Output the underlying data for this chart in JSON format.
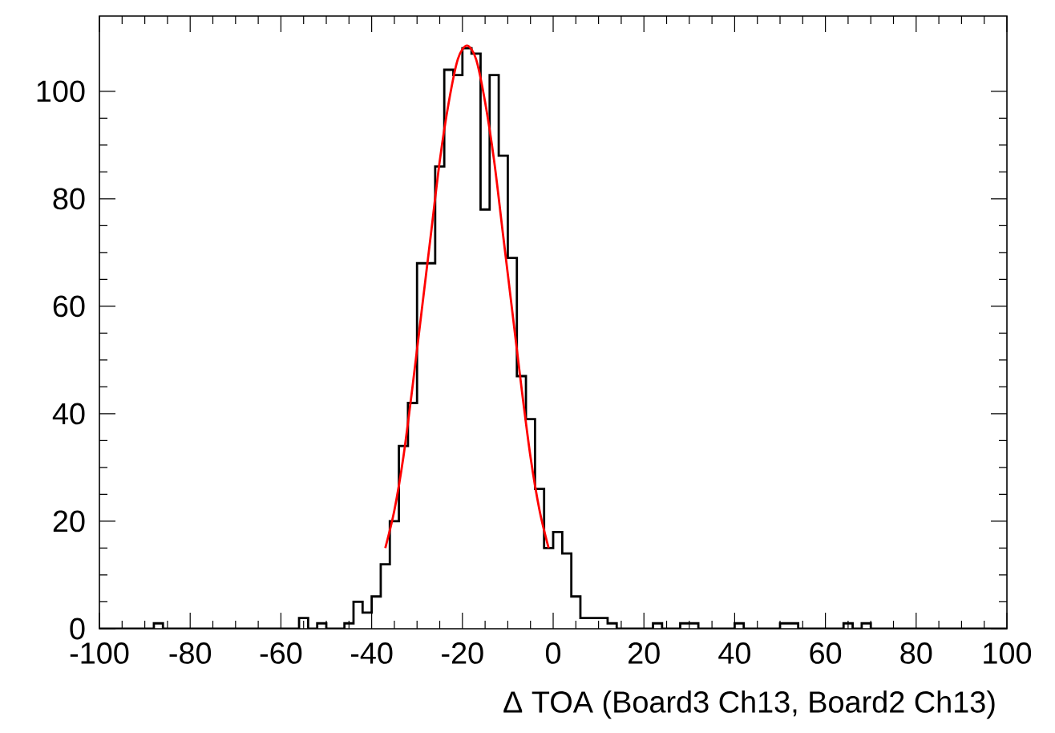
{
  "chart_data": {
    "type": "histogram",
    "xlabel": "Δ TOA (Board3 Ch13, Board2 Ch13)",
    "bins": [
      -100,
      -98,
      -96,
      -94,
      -92,
      -90,
      -88,
      -86,
      -84,
      -82,
      -80,
      -78,
      -76,
      -74,
      -72,
      -70,
      -68,
      -66,
      -64,
      -62,
      -60,
      -58,
      -56,
      -54,
      -52,
      -50,
      -48,
      -46,
      -44,
      -42,
      -40,
      -38,
      -36,
      -34,
      -32,
      -30,
      -28,
      -26,
      -24,
      -22,
      -20,
      -18,
      -16,
      -14,
      -12,
      -10,
      -8,
      -6,
      -4,
      -2,
      0,
      2,
      4,
      6,
      8,
      10,
      12,
      14,
      16,
      18,
      20,
      22,
      24,
      26,
      28,
      30,
      32,
      34,
      36,
      38,
      40,
      42,
      44,
      46,
      48,
      50,
      52,
      54,
      56,
      58,
      60,
      62,
      64,
      66,
      68,
      70,
      72,
      74,
      76,
      78,
      80,
      82,
      84,
      86,
      88,
      90,
      92,
      94,
      96,
      98,
      100
    ],
    "values": [
      0,
      0,
      0,
      0,
      0,
      0,
      1,
      0,
      0,
      0,
      0,
      0,
      0,
      0,
      0,
      0,
      0,
      0,
      0,
      0,
      0,
      0,
      2,
      0,
      1,
      0,
      0,
      1,
      5,
      3,
      6,
      12,
      20,
      34,
      42,
      68,
      68,
      86,
      104,
      103,
      108,
      107,
      78,
      103,
      88,
      69,
      47,
      39,
      26,
      15,
      18,
      14,
      6,
      2,
      2,
      2,
      1,
      0,
      0,
      0,
      0,
      1,
      0,
      0,
      1,
      1,
      0,
      0,
      0,
      0,
      1,
      0,
      0,
      0,
      0,
      1,
      1,
      0,
      0,
      0,
      0,
      0,
      1,
      0,
      1,
      0,
      0,
      0,
      0,
      0,
      0,
      0,
      0,
      0,
      0,
      0,
      0,
      0,
      0,
      0
    ],
    "color": "#000000",
    "series": [
      {
        "type": "line",
        "color": "#ff0000",
        "x": [
          -37,
          -35,
          -33,
          -31,
          -29,
          -27,
          -25,
          -23,
          -21,
          -19,
          -17,
          -15,
          -13,
          -11,
          -9,
          -7,
          -5,
          -3,
          -1
        ],
        "values": [
          15,
          22,
          32,
          45,
          59,
          73,
          87,
          98,
          106,
          108.5,
          106,
          98,
          87,
          73,
          59,
          45,
          32,
          22,
          15
        ]
      }
    ],
    "xlim": [
      -100,
      100
    ],
    "ylim": [
      0,
      114
    ],
    "xticks": [
      -100,
      -80,
      -60,
      -40,
      -20,
      0,
      20,
      40,
      60,
      80,
      100
    ],
    "yticks": [
      0,
      20,
      40,
      60,
      80,
      100
    ]
  }
}
